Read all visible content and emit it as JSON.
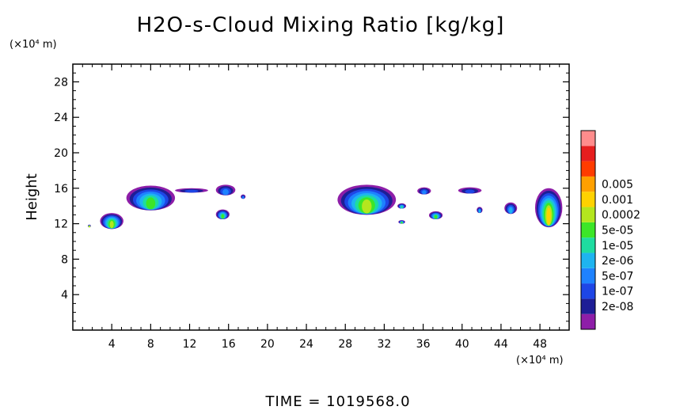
{
  "chart_data": {
    "type": "heatmap",
    "title": "H2O-s-Cloud Mixing Ratio [kg/kg]",
    "ylabel": "Height",
    "xlabel": "",
    "y_unit": "(×10⁴ m)",
    "x_unit": "(×10⁴ m)",
    "xlim": [
      0,
      51
    ],
    "ylim": [
      0,
      30
    ],
    "x_ticks": [
      4,
      8,
      12,
      16,
      20,
      24,
      28,
      32,
      36,
      40,
      44,
      48
    ],
    "y_ticks": [
      4,
      8,
      12,
      16,
      20,
      24,
      28
    ],
    "grid": false,
    "footer": "TIME = 1019568.0",
    "colorbar": {
      "placement": "right",
      "colors": [
        "#8e1ea8",
        "#1e1e96",
        "#1e46e6",
        "#1e82ff",
        "#1eb4f0",
        "#1edca0",
        "#3ce628",
        "#b4e61e",
        "#ffd200",
        "#ffa000",
        "#ff3c00",
        "#e61e1e",
        "#ff8c8c"
      ],
      "labels": [
        "2e-08",
        "1e-07",
        "5e-07",
        "2e-06",
        "1e-05",
        "5e-05",
        "0.0002",
        "0.001",
        "0.005"
      ]
    },
    "clouds": [
      {
        "x_center": 1.7,
        "width": 0.3,
        "y_bottom": 11.6,
        "y_top": 11.9,
        "peak_level": 7
      },
      {
        "x_center": 4.0,
        "width": 2.4,
        "y_bottom": 11.4,
        "y_top": 13.2,
        "peak_level": 7
      },
      {
        "x_center": 8.0,
        "width": 5.0,
        "y_bottom": 13.5,
        "y_top": 16.3,
        "peak_level": 6
      },
      {
        "x_center": 12.2,
        "width": 3.4,
        "y_bottom": 15.5,
        "y_top": 16.0,
        "peak_level": 2
      },
      {
        "x_center": 15.7,
        "width": 2.0,
        "y_bottom": 15.2,
        "y_top": 16.4,
        "peak_level": 3
      },
      {
        "x_center": 15.4,
        "width": 1.4,
        "y_bottom": 12.5,
        "y_top": 13.6,
        "peak_level": 6
      },
      {
        "x_center": 17.5,
        "width": 0.5,
        "y_bottom": 14.8,
        "y_top": 15.3,
        "peak_level": 3
      },
      {
        "x_center": 30.2,
        "width": 6.0,
        "y_bottom": 13.0,
        "y_top": 16.4,
        "peak_level": 7
      },
      {
        "x_center": 33.8,
        "width": 0.9,
        "y_bottom": 13.7,
        "y_top": 14.3,
        "peak_level": 5
      },
      {
        "x_center": 33.8,
        "width": 0.7,
        "y_bottom": 12.0,
        "y_top": 12.4,
        "peak_level": 6
      },
      {
        "x_center": 36.1,
        "width": 1.4,
        "y_bottom": 15.3,
        "y_top": 16.1,
        "peak_level": 3
      },
      {
        "x_center": 37.3,
        "width": 1.4,
        "y_bottom": 12.5,
        "y_top": 13.4,
        "peak_level": 6
      },
      {
        "x_center": 40.8,
        "width": 2.4,
        "y_bottom": 15.4,
        "y_top": 16.1,
        "peak_level": 2
      },
      {
        "x_center": 41.8,
        "width": 0.6,
        "y_bottom": 13.2,
        "y_top": 13.9,
        "peak_level": 4
      },
      {
        "x_center": 45.0,
        "width": 1.3,
        "y_bottom": 13.1,
        "y_top": 14.4,
        "peak_level": 4
      },
      {
        "x_center": 48.9,
        "width": 2.8,
        "y_bottom": 11.6,
        "y_top": 16.0,
        "peak_level": 8
      }
    ]
  }
}
